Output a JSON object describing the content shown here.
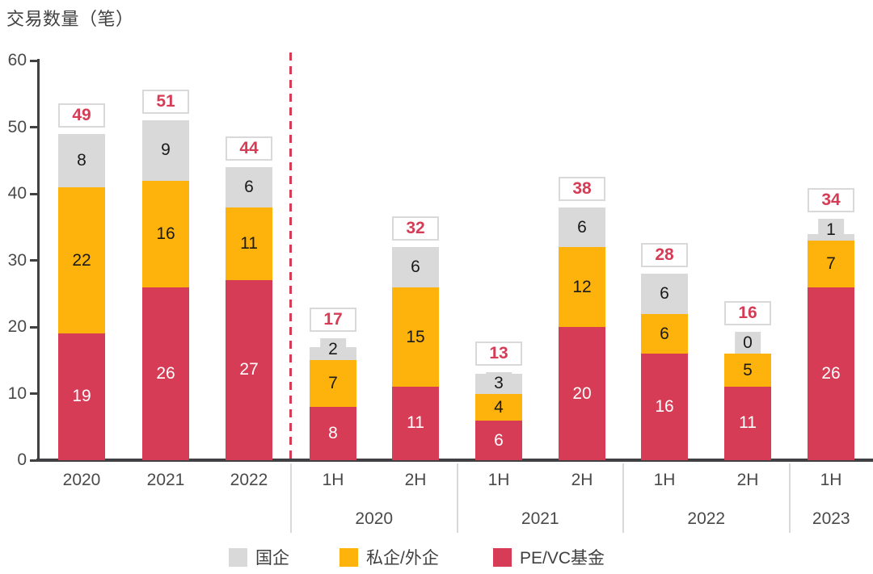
{
  "title": "交易数量（笔）",
  "colors": {
    "soe": "#d9d9d9",
    "private_foreign": "#fdb30c",
    "pevc": "#d63c55",
    "axis": "#414042",
    "total_text": "#d63c55",
    "box_border": "#d9d9d9",
    "separator": "#d9d9d9",
    "dashed_divider": "#d63c55",
    "label_dark": "#1a1a1a",
    "label_light": "#ffffff"
  },
  "y_axis": {
    "ticks": [
      0,
      10,
      20,
      30,
      40,
      50,
      60
    ],
    "max": 60
  },
  "legend": [
    {
      "label": "国企",
      "color_key": "soe"
    },
    {
      "label": "私企/外企",
      "color_key": "private_foreign"
    },
    {
      "label": "PE/VC基金",
      "color_key": "pevc"
    }
  ],
  "chart_data": {
    "type": "bar",
    "stacked": true,
    "title": "交易数量（笔）",
    "ylabel": "交易数量（笔）",
    "ylim": [
      0,
      60
    ],
    "grid": false,
    "legend_position": "bottom",
    "categories": [
      "2020",
      "2021",
      "2022",
      "1H",
      "2H",
      "1H",
      "2H",
      "1H",
      "2H",
      "1H"
    ],
    "group_labels": [
      "2020",
      "2021",
      "2022",
      "2023"
    ],
    "annual_halfyear_divider_after_index": 2,
    "series": [
      {
        "name": "PE/VC基金",
        "color_key": "pevc",
        "values": [
          19,
          26,
          27,
          8,
          11,
          6,
          20,
          16,
          11,
          26
        ]
      },
      {
        "name": "私企/外企",
        "color_key": "private_foreign",
        "values": [
          22,
          16,
          11,
          7,
          15,
          4,
          12,
          6,
          5,
          7
        ]
      },
      {
        "name": "国企",
        "color_key": "soe",
        "values": [
          8,
          9,
          6,
          2,
          6,
          3,
          6,
          6,
          0,
          1
        ]
      }
    ],
    "totals": [
      49,
      51,
      44,
      17,
      32,
      13,
      38,
      28,
      16,
      34
    ]
  }
}
